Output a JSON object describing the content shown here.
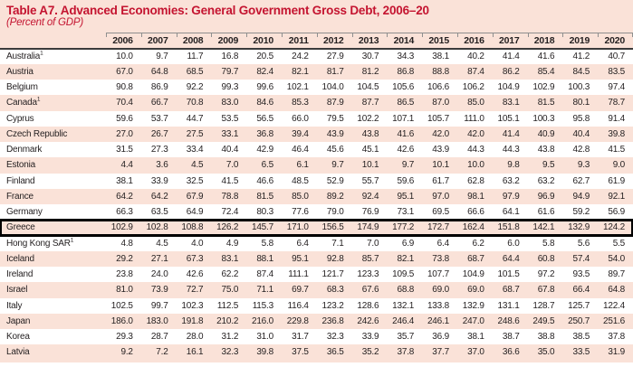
{
  "header": {
    "title": "Table A7. Advanced Economies: General Government Gross Debt, 2006–20",
    "subtitle": "(Percent of GDP)"
  },
  "colors": {
    "accent_red": "#c41430",
    "panel_pink": "#fae2d8",
    "row_white": "#ffffff",
    "rule_light": "#8f8f8f",
    "rule_dark": "#3b3b3b",
    "text": "#231f20",
    "highlight_border": "#000000"
  },
  "table": {
    "years": [
      "2006",
      "2007",
      "2008",
      "2009",
      "2010",
      "2011",
      "2012",
      "2013",
      "2014",
      "2015",
      "2016",
      "2017",
      "2018",
      "2019",
      "2020"
    ],
    "rows": [
      {
        "country": "Australia",
        "footnote": "1",
        "highlight": false,
        "values": [
          10.0,
          9.7,
          11.7,
          16.8,
          20.5,
          24.2,
          27.9,
          30.7,
          34.3,
          38.1,
          40.2,
          41.4,
          41.6,
          41.2,
          40.7
        ]
      },
      {
        "country": "Austria",
        "footnote": "",
        "highlight": false,
        "values": [
          67.0,
          64.8,
          68.5,
          79.7,
          82.4,
          82.1,
          81.7,
          81.2,
          86.8,
          88.8,
          87.4,
          86.2,
          85.4,
          84.5,
          83.5
        ]
      },
      {
        "country": "Belgium",
        "footnote": "",
        "highlight": false,
        "values": [
          90.8,
          86.9,
          92.2,
          99.3,
          99.6,
          102.1,
          104.0,
          104.5,
          105.6,
          106.6,
          106.2,
          104.9,
          102.9,
          100.3,
          97.4
        ]
      },
      {
        "country": "Canada",
        "footnote": "1",
        "highlight": false,
        "values": [
          70.4,
          66.7,
          70.8,
          83.0,
          84.6,
          85.3,
          87.9,
          87.7,
          86.5,
          87.0,
          85.0,
          83.1,
          81.5,
          80.1,
          78.7
        ]
      },
      {
        "country": "Cyprus",
        "footnote": "",
        "highlight": false,
        "values": [
          59.6,
          53.7,
          44.7,
          53.5,
          56.5,
          66.0,
          79.5,
          102.2,
          107.1,
          105.7,
          111.0,
          105.1,
          100.3,
          95.8,
          91.4
        ]
      },
      {
        "country": "Czech Republic",
        "footnote": "",
        "highlight": false,
        "values": [
          27.0,
          26.7,
          27.5,
          33.1,
          36.8,
          39.4,
          43.9,
          43.8,
          41.6,
          42.0,
          42.0,
          41.4,
          40.9,
          40.4,
          39.8
        ]
      },
      {
        "country": "Denmark",
        "footnote": "",
        "highlight": false,
        "values": [
          31.5,
          27.3,
          33.4,
          40.4,
          42.9,
          46.4,
          45.6,
          45.1,
          42.6,
          43.9,
          44.3,
          44.3,
          43.8,
          42.8,
          41.5
        ]
      },
      {
        "country": "Estonia",
        "footnote": "",
        "highlight": false,
        "values": [
          4.4,
          3.6,
          4.5,
          7.0,
          6.5,
          6.1,
          9.7,
          10.1,
          9.7,
          10.1,
          10.0,
          9.8,
          9.5,
          9.3,
          9.0
        ]
      },
      {
        "country": "Finland",
        "footnote": "",
        "highlight": false,
        "values": [
          38.1,
          33.9,
          32.5,
          41.5,
          46.6,
          48.5,
          52.9,
          55.7,
          59.6,
          61.7,
          62.8,
          63.2,
          63.2,
          62.7,
          61.9
        ]
      },
      {
        "country": "France",
        "footnote": "",
        "highlight": false,
        "values": [
          64.2,
          64.2,
          67.9,
          78.8,
          81.5,
          85.0,
          89.2,
          92.4,
          95.1,
          97.0,
          98.1,
          97.9,
          96.9,
          94.9,
          92.1
        ]
      },
      {
        "country": "Germany",
        "footnote": "",
        "highlight": false,
        "values": [
          66.3,
          63.5,
          64.9,
          72.4,
          80.3,
          77.6,
          79.0,
          76.9,
          73.1,
          69.5,
          66.6,
          64.1,
          61.6,
          59.2,
          56.9
        ]
      },
      {
        "country": "Greece",
        "footnote": "",
        "highlight": true,
        "values": [
          102.9,
          102.8,
          108.8,
          126.2,
          145.7,
          171.0,
          156.5,
          174.9,
          177.2,
          172.7,
          162.4,
          151.8,
          142.1,
          132.9,
          124.2
        ]
      },
      {
        "country": "Hong Kong SAR",
        "footnote": "1",
        "highlight": false,
        "values": [
          4.8,
          4.5,
          4.0,
          4.9,
          5.8,
          6.4,
          7.1,
          7.0,
          6.9,
          6.4,
          6.2,
          6.0,
          5.8,
          5.6,
          5.5
        ]
      },
      {
        "country": "Iceland",
        "footnote": "",
        "highlight": false,
        "values": [
          29.2,
          27.1,
          67.3,
          83.1,
          88.1,
          95.1,
          92.8,
          85.7,
          82.1,
          73.8,
          68.7,
          64.4,
          60.8,
          57.4,
          54.0
        ]
      },
      {
        "country": "Ireland",
        "footnote": "",
        "highlight": false,
        "values": [
          23.8,
          24.0,
          42.6,
          62.2,
          87.4,
          111.1,
          121.7,
          123.3,
          109.5,
          107.7,
          104.9,
          101.5,
          97.2,
          93.5,
          89.7
        ]
      },
      {
        "country": "Israel",
        "footnote": "",
        "highlight": false,
        "values": [
          81.0,
          73.9,
          72.7,
          75.0,
          71.1,
          69.7,
          68.3,
          67.6,
          68.8,
          69.0,
          69.0,
          68.7,
          67.8,
          66.4,
          64.8
        ]
      },
      {
        "country": "Italy",
        "footnote": "",
        "highlight": false,
        "values": [
          102.5,
          99.7,
          102.3,
          112.5,
          115.3,
          116.4,
          123.2,
          128.6,
          132.1,
          133.8,
          132.9,
          131.1,
          128.7,
          125.7,
          122.4
        ]
      },
      {
        "country": "Japan",
        "footnote": "",
        "highlight": false,
        "values": [
          186.0,
          183.0,
          191.8,
          210.2,
          216.0,
          229.8,
          236.8,
          242.6,
          246.4,
          246.1,
          247.0,
          248.6,
          249.5,
          250.7,
          251.6
        ]
      },
      {
        "country": "Korea",
        "footnote": "",
        "highlight": false,
        "values": [
          29.3,
          28.7,
          28.0,
          31.2,
          31.0,
          31.7,
          32.3,
          33.9,
          35.7,
          36.9,
          38.1,
          38.7,
          38.8,
          38.5,
          37.8
        ]
      },
      {
        "country": "Latvia",
        "footnote": "",
        "highlight": false,
        "values": [
          9.2,
          7.2,
          16.1,
          32.3,
          39.8,
          37.5,
          36.5,
          35.2,
          37.8,
          37.7,
          37.0,
          36.6,
          35.0,
          33.5,
          31.9
        ]
      }
    ]
  }
}
